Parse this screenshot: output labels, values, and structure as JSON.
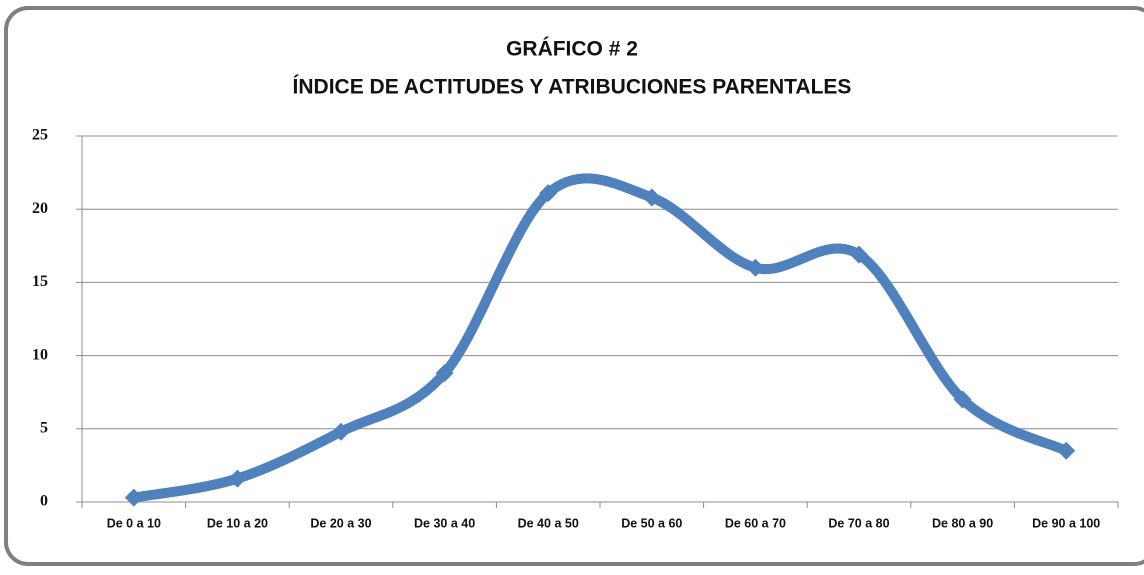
{
  "chart_data": {
    "type": "line",
    "title": [
      "GRÁFICO # 2",
      "ÍNDICE DE ACTITUDES Y ATRIBUCIONES PARENTALES"
    ],
    "categories": [
      "De 0 a 10",
      "De 10 a 20",
      "De 20 a 30",
      "De 30 a 40",
      "De 40 a 50",
      "De 50 a 60",
      "De 60 a 70",
      "De 70 a 80",
      "De 80 a 90",
      "De 90 a 100"
    ],
    "values": [
      0.3,
      1.6,
      4.8,
      8.8,
      21.1,
      20.8,
      16.0,
      16.9,
      7.0,
      3.5
    ],
    "color": "#4f81bd",
    "ylim": [
      0,
      25
    ],
    "yticks": [
      0,
      5,
      10,
      15,
      20,
      25
    ],
    "grid": true,
    "smooth": true
  }
}
